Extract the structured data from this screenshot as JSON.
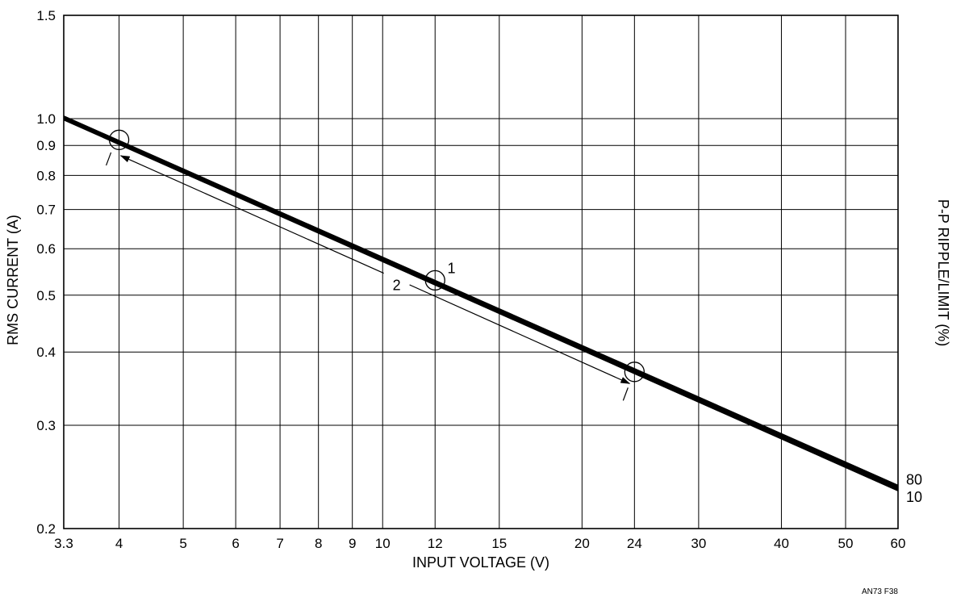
{
  "chart_data": {
    "type": "line",
    "xscale": "log",
    "yscale": "log",
    "xlim": [
      3.3,
      60
    ],
    "ylim": [
      0.2,
      1.5
    ],
    "xticks": [
      3.3,
      4,
      5,
      6,
      7,
      8,
      9,
      10,
      12,
      15,
      20,
      24,
      30,
      40,
      50,
      60
    ],
    "xtick_labels": [
      "3.3",
      "4",
      "5",
      "6",
      "7",
      "8",
      "9",
      "10",
      "12",
      "15",
      "20",
      "24",
      "30",
      "40",
      "50",
      "60"
    ],
    "yticks": [
      0.2,
      0.3,
      0.4,
      0.5,
      0.6,
      0.7,
      0.8,
      0.9,
      1.0,
      1.5
    ],
    "ytick_labels": [
      "0.2",
      "0.3",
      "0.4",
      "0.5",
      "0.6",
      "0.7",
      "0.8",
      "0.9",
      "1.0",
      "1.5"
    ],
    "xlabel": "INPUT VOLTAGE (V)",
    "ylabel": "RMS CURRENT (A)",
    "right_label": "P-P RIPPLE/LIMIT (%)",
    "grid": true,
    "series": [
      {
        "name": "80",
        "x": [
          3.3,
          60
        ],
        "y": [
          1.01,
          0.237
        ]
      },
      {
        "name": "10",
        "x": [
          3.3,
          60
        ],
        "y": [
          0.995,
          0.232
        ]
      }
    ],
    "markers": [
      {
        "x": 4,
        "y": 0.92
      },
      {
        "x": 12,
        "y": 0.53
      },
      {
        "x": 24,
        "y": 0.37
      }
    ],
    "annotations": [
      {
        "text": "1",
        "x": 12.7,
        "y": 0.545
      },
      {
        "text": "2",
        "x": 10.5,
        "y": 0.51
      }
    ],
    "range_arrow": {
      "from_x": 4,
      "from_y": 0.87,
      "to_x": 24,
      "to_y": 0.35,
      "label": "2"
    },
    "figure_id": "AN73 F38"
  }
}
